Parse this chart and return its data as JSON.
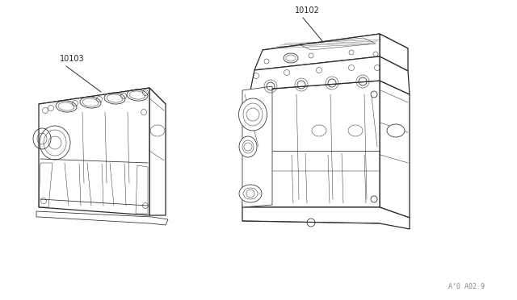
{
  "background_color": "#ffffff",
  "line_color": "#2a2a2a",
  "text_color": "#222222",
  "label_10103": "10103",
  "label_10102": "10102",
  "ref_code": "A’0 A02 9",
  "fig_width": 6.4,
  "fig_height": 3.72,
  "dpi": 100,
  "lw_main": 0.9,
  "lw_detail": 0.55,
  "lw_thin": 0.35
}
